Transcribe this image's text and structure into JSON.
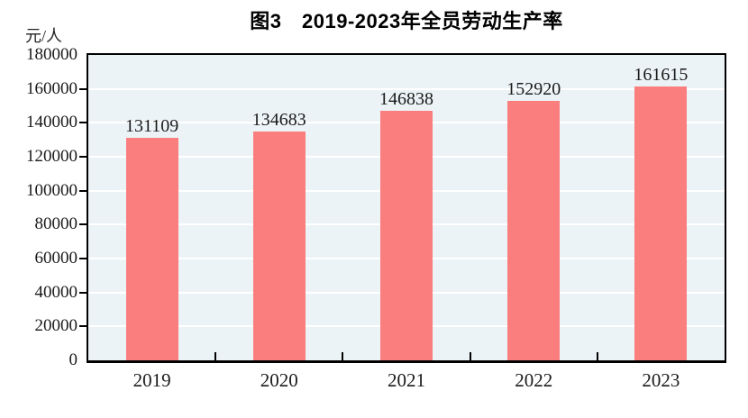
{
  "figure": {
    "title": "图3　2019-2023年全员劳动生产率",
    "y_unit": "元/人"
  },
  "colors": {
    "bar": "#FB7E7E",
    "plot_background": "#ECF3F6",
    "gridline": "#FFFFFF",
    "axis": "#000000",
    "text": "#1A1A1A"
  },
  "chart_data": {
    "type": "bar",
    "title": "图3　2019-2023年全员劳动生产率",
    "categories": [
      "2019",
      "2020",
      "2021",
      "2022",
      "2023"
    ],
    "values": [
      131109,
      134683,
      146838,
      152920,
      161615
    ],
    "xlabel": "",
    "ylabel": "元/人",
    "ylim": [
      0,
      180000
    ],
    "ytick_step": 20000,
    "yticks": [
      0,
      20000,
      40000,
      60000,
      80000,
      100000,
      120000,
      140000,
      160000,
      180000
    ],
    "grid": "horizontal-white",
    "legend": "none",
    "bar_labels_shown": true
  }
}
